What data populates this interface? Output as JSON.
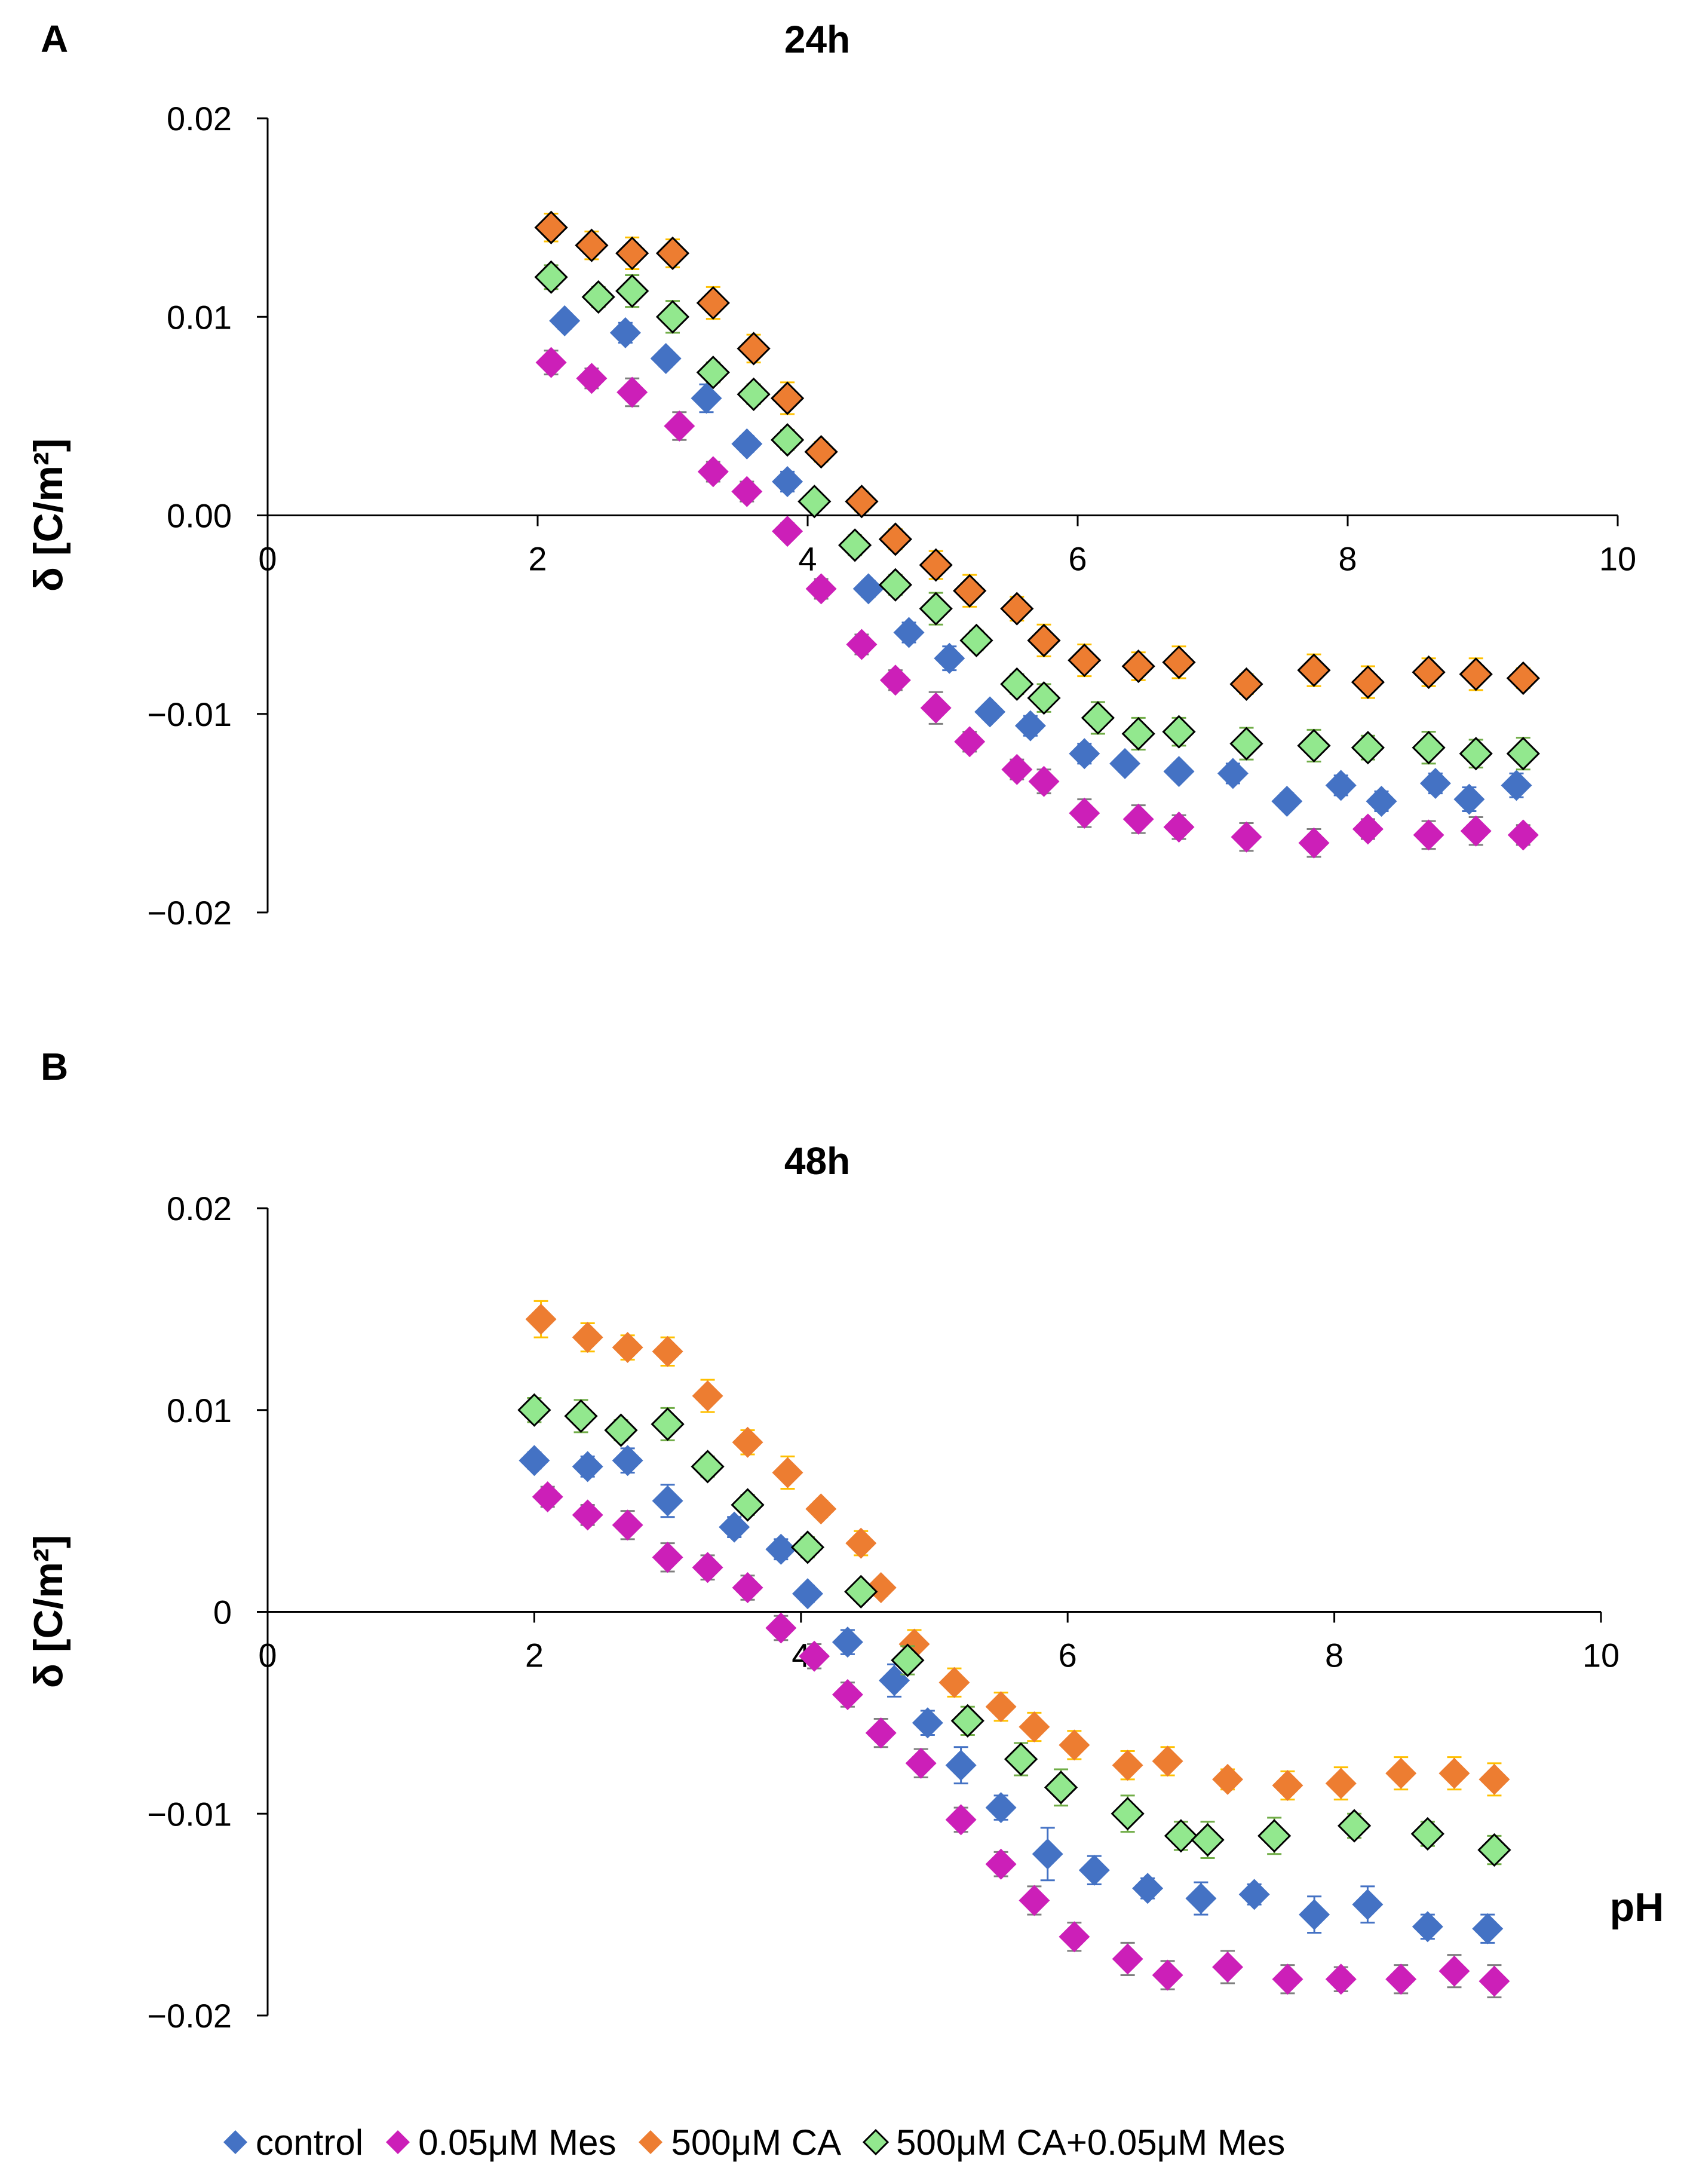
{
  "figure": {
    "panels": [
      {
        "letter": "A",
        "title": "24h"
      },
      {
        "letter": "B",
        "title": "48h"
      }
    ]
  },
  "chart_data": [
    {
      "type": "scatter",
      "title": "24h",
      "panel": "A",
      "xlabel": "",
      "ylabel": "δ [C/m²]",
      "xlim": [
        0,
        10
      ],
      "ylim": [
        -0.02,
        0.02
      ],
      "xticks": [
        "0",
        "2",
        "4",
        "6",
        "8",
        "10"
      ],
      "yticks": [
        "0.02",
        "0.01",
        "0.00",
        "−0.01",
        "−0.02"
      ],
      "series": [
        {
          "name": "control",
          "color": "#4472C4",
          "outline": false,
          "x": [
            2.2,
            2.65,
            2.95,
            3.25,
            3.55,
            3.85,
            4.45,
            4.75,
            5.05,
            5.35,
            5.65,
            6.05,
            6.35,
            6.75,
            7.15,
            7.55,
            7.95,
            8.25,
            8.65,
            8.9,
            9.25
          ],
          "y": [
            0.0098,
            0.0092,
            0.0079,
            0.0059,
            0.0036,
            0.0017,
            -0.0037,
            -0.0059,
            -0.0072,
            -0.0099,
            -0.0106,
            -0.012,
            -0.0125,
            -0.0129,
            -0.013,
            -0.0144,
            -0.0136,
            -0.0144,
            -0.0135,
            -0.0143,
            -0.0136
          ],
          "err": [
            0.0004,
            0.0005,
            0.0004,
            0.0007,
            0.0004,
            0.0005,
            0.0004,
            0.0005,
            0.0006,
            0.0004,
            0.0005,
            0.0005,
            0.0004,
            0.0004,
            0.0005,
            0.0004,
            0.0005,
            0.0005,
            0.0005,
            0.0006,
            0.0006
          ]
        },
        {
          "name": "0.05μM Mes",
          "color": "#CC1FB8",
          "outline": false,
          "x": [
            2.1,
            2.4,
            2.7,
            3.05,
            3.3,
            3.55,
            3.85,
            4.1,
            4.4,
            4.65,
            4.95,
            5.2,
            5.55,
            5.75,
            6.05,
            6.45,
            6.75,
            7.25,
            7.75,
            8.15,
            8.6,
            8.95,
            9.3
          ],
          "y": [
            0.0077,
            0.0069,
            0.0062,
            0.0045,
            0.0022,
            0.0012,
            -0.0008,
            -0.0037,
            -0.0065,
            -0.0083,
            -0.0097,
            -0.0114,
            -0.0128,
            -0.0134,
            -0.015,
            -0.0153,
            -0.0157,
            -0.0162,
            -0.0165,
            -0.0158,
            -0.0161,
            -0.0159,
            -0.0161
          ],
          "err": [
            0.0006,
            0.0005,
            0.0007,
            0.0007,
            0.0005,
            0.0005,
            0.0004,
            0.0005,
            0.0005,
            0.0005,
            0.0008,
            0.0005,
            0.0005,
            0.0006,
            0.0007,
            0.0007,
            0.0006,
            0.0007,
            0.0007,
            0.0005,
            0.0007,
            0.0007,
            0.0005
          ]
        },
        {
          "name": "500μM CA",
          "color": "#ED7D31",
          "outline": true,
          "x": [
            2.1,
            2.4,
            2.7,
            3.0,
            3.3,
            3.6,
            3.85,
            4.1,
            4.4,
            4.65,
            4.95,
            5.2,
            5.55,
            5.75,
            6.05,
            6.45,
            6.75,
            7.25,
            7.75,
            8.15,
            8.6,
            8.95,
            9.3
          ],
          "y": [
            0.0145,
            0.0136,
            0.0132,
            0.0132,
            0.0107,
            0.0084,
            0.0059,
            0.0032,
            0.0007,
            -0.0012,
            -0.0025,
            -0.0038,
            -0.0047,
            -0.0063,
            -0.0073,
            -0.0076,
            -0.0074,
            -0.0085,
            -0.0078,
            -0.0084,
            -0.0079,
            -0.008,
            -0.0082
          ],
          "err": [
            0.0007,
            0.0007,
            0.0008,
            0.0007,
            0.0008,
            0.0007,
            0.0008,
            0.0005,
            0.0005,
            0.0005,
            0.0007,
            0.0008,
            0.0006,
            0.0008,
            0.0008,
            0.0007,
            0.0008,
            0.0005,
            0.0008,
            0.0008,
            0.0007,
            0.0008,
            0.0005
          ]
        },
        {
          "name": "500μM CA+0.05μM Mes",
          "color": "#92E88E",
          "outline": true,
          "x": [
            2.1,
            2.45,
            2.7,
            3.0,
            3.3,
            3.6,
            3.85,
            4.05,
            4.35,
            4.65,
            4.95,
            5.25,
            5.55,
            5.75,
            6.15,
            6.45,
            6.75,
            7.25,
            7.75,
            8.15,
            8.6,
            8.95,
            9.3
          ],
          "y": [
            0.012,
            0.011,
            0.0113,
            0.01,
            0.0072,
            0.0061,
            0.0038,
            0.0007,
            -0.0015,
            -0.0035,
            -0.0047,
            -0.0063,
            -0.0085,
            -0.0092,
            -0.0102,
            -0.011,
            -0.0109,
            -0.0115,
            -0.0116,
            -0.0117,
            -0.0117,
            -0.012,
            -0.012
          ],
          "err": [
            0.0006,
            0.0005,
            0.0008,
            0.0008,
            0.0005,
            0.0005,
            0.0005,
            0.0004,
            0.0005,
            0.0005,
            0.0008,
            0.0005,
            0.0005,
            0.0007,
            0.0008,
            0.0008,
            0.0007,
            0.0008,
            0.0008,
            0.0006,
            0.0008,
            0.0007,
            0.0008
          ]
        }
      ]
    },
    {
      "type": "scatter",
      "title": "48h",
      "panel": "B",
      "xlabel": "pH",
      "ylabel": "δ [C/m²]",
      "xlim": [
        0,
        10
      ],
      "ylim": [
        -0.02,
        0.02
      ],
      "xticks": [
        "0",
        "2",
        "4",
        "6",
        "8",
        "10"
      ],
      "yticks": [
        "0.02",
        "0.01",
        "0",
        "−0.01",
        "−0.02"
      ],
      "series": [
        {
          "name": "control",
          "color": "#4472C4",
          "outline": false,
          "x": [
            2.0,
            2.4,
            2.7,
            3.0,
            3.5,
            3.85,
            4.05,
            4.35,
            4.7,
            4.95,
            5.2,
            5.5,
            5.85,
            6.2,
            6.6,
            7.0,
            7.4,
            7.85,
            8.25,
            8.7,
            9.15
          ],
          "y": [
            0.0075,
            0.0072,
            0.0075,
            0.0055,
            0.0042,
            0.0031,
            0.0009,
            -0.0015,
            -0.0034,
            -0.0055,
            -0.0076,
            -0.0097,
            -0.012,
            -0.0128,
            -0.0137,
            -0.0142,
            -0.014,
            -0.015,
            -0.0145,
            -0.0156,
            -0.0157
          ],
          "err": [
            0.0004,
            0.0005,
            0.0006,
            0.0008,
            0.0005,
            0.0005,
            0.0004,
            0.0006,
            0.0008,
            0.0006,
            0.0009,
            0.0006,
            0.0013,
            0.0007,
            0.0005,
            0.0008,
            0.0005,
            0.0009,
            0.0009,
            0.0006,
            0.0007
          ]
        },
        {
          "name": "0.05μM Mes",
          "color": "#CC1FB8",
          "outline": false,
          "x": [
            2.1,
            2.4,
            2.7,
            3.0,
            3.3,
            3.6,
            3.85,
            4.1,
            4.35,
            4.6,
            4.9,
            5.2,
            5.5,
            5.75,
            6.05,
            6.45,
            6.75,
            7.2,
            7.65,
            8.05,
            8.5,
            8.9,
            9.2
          ],
          "y": [
            0.0057,
            0.0048,
            0.0043,
            0.0027,
            0.0022,
            0.0012,
            -0.0008,
            -0.0022,
            -0.0041,
            -0.006,
            -0.0075,
            -0.0103,
            -0.0125,
            -0.0143,
            -0.0161,
            -0.0172,
            -0.018,
            -0.0176,
            -0.0182,
            -0.0182,
            -0.0182,
            -0.0178,
            -0.0183
          ],
          "err": [
            0.0005,
            0.0005,
            0.0007,
            0.0007,
            0.0006,
            0.0006,
            0.0006,
            0.0006,
            0.0006,
            0.0007,
            0.0007,
            0.0006,
            0.0006,
            0.0007,
            0.0007,
            0.0008,
            0.0007,
            0.0008,
            0.0007,
            0.0006,
            0.0007,
            0.0008,
            0.0008
          ]
        },
        {
          "name": "500μM CA",
          "color": "#ED7D31",
          "outline": false,
          "x": [
            2.05,
            2.4,
            2.7,
            3.0,
            3.3,
            3.6,
            3.9,
            4.15,
            4.45,
            4.6,
            4.85,
            5.15,
            5.5,
            5.75,
            6.05,
            6.45,
            6.75,
            7.2,
            7.65,
            8.05,
            8.5,
            8.9,
            9.2
          ],
          "y": [
            0.0145,
            0.0136,
            0.0131,
            0.0129,
            0.0107,
            0.0084,
            0.0069,
            0.0051,
            0.0034,
            0.0012,
            -0.0016,
            -0.0035,
            -0.0047,
            -0.0057,
            -0.0066,
            -0.0076,
            -0.0074,
            -0.0083,
            -0.0086,
            -0.0085,
            -0.008,
            -0.008,
            -0.0083
          ],
          "err": [
            0.0009,
            0.0007,
            0.0006,
            0.0007,
            0.0008,
            0.0006,
            0.0008,
            0.0004,
            0.0006,
            0.0004,
            0.0007,
            0.0007,
            0.0007,
            0.0007,
            0.0007,
            0.0007,
            0.0007,
            0.0005,
            0.0007,
            0.0008,
            0.0008,
            0.0008,
            0.0008
          ]
        },
        {
          "name": "500μM CA+0.05μM Mes",
          "color": "#92E88E",
          "outline": true,
          "x": [
            2.0,
            2.35,
            2.65,
            3.0,
            3.3,
            3.6,
            4.05,
            4.45,
            4.8,
            5.25,
            5.65,
            5.95,
            6.45,
            6.85,
            7.05,
            7.55,
            8.15,
            8.7,
            9.2
          ],
          "y": [
            0.01,
            0.0097,
            0.009,
            0.0093,
            0.0072,
            0.0053,
            0.0032,
            0.001,
            -0.0024,
            -0.0054,
            -0.0073,
            -0.0087,
            -0.01,
            -0.0111,
            -0.0113,
            -0.0111,
            -0.0106,
            -0.011,
            -0.0118
          ],
          "err": [
            0.0006,
            0.0008,
            0.0005,
            0.0008,
            0.0005,
            0.0005,
            0.0005,
            0.0004,
            0.0007,
            0.0007,
            0.0008,
            0.0009,
            0.0009,
            0.0007,
            0.0009,
            0.0009,
            0.0006,
            0.0006,
            0.0007
          ]
        }
      ]
    }
  ],
  "legend": {
    "entries": [
      {
        "label": "control",
        "color": "#4472C4",
        "outline": false
      },
      {
        "label": "0.05μM Mes",
        "color": "#CC1FB8",
        "outline": false
      },
      {
        "label": "500μM CA",
        "color": "#ED7D31",
        "outline": false
      },
      {
        "label": "500μM CA+0.05μM Mes",
        "color": "#92E88E",
        "outline": true
      }
    ]
  },
  "colors": {
    "axis": "#000000",
    "errorbar_orange": "#FFC000",
    "errorbar_blue": "#4472C4",
    "errorbar_gray": "#7F7F7F",
    "errorbar_green": "#70AD47"
  }
}
